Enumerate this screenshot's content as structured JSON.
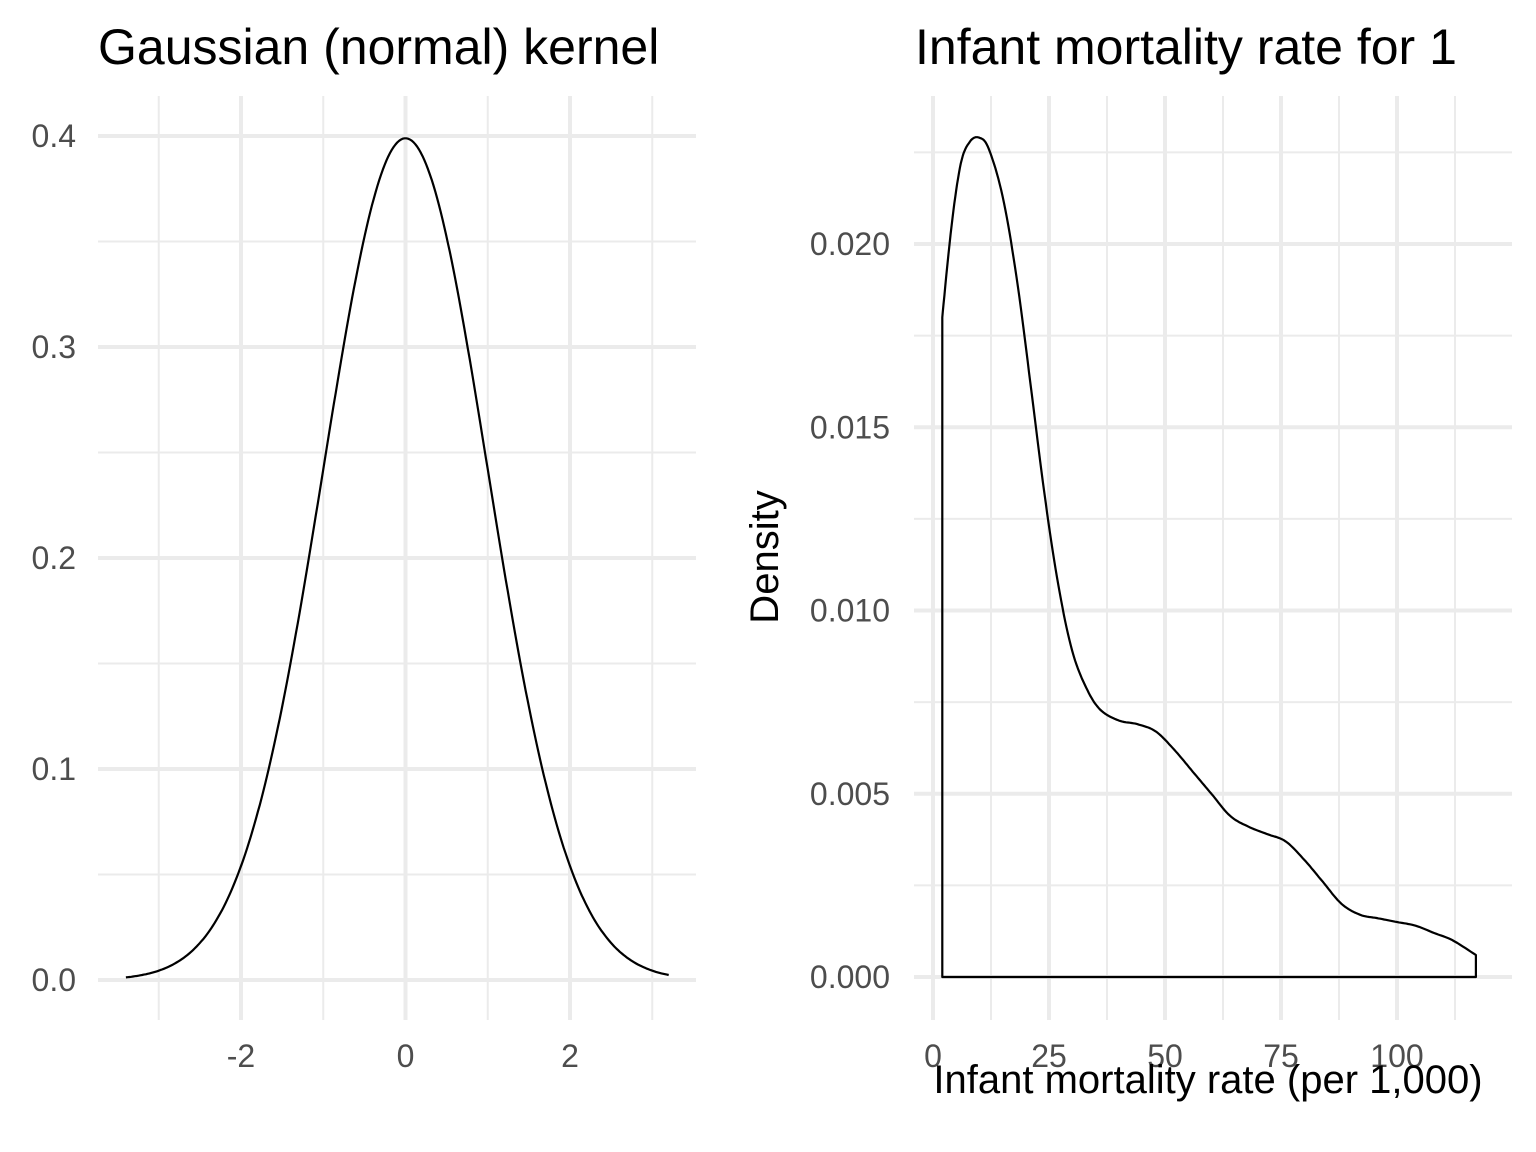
{
  "chart_data": [
    {
      "type": "line",
      "title": "Gaussian (normal) kernel",
      "xlabel": "",
      "ylabel": "",
      "xlim": [
        -3.0,
        3.2
      ],
      "ylim": [
        0,
        0.4
      ],
      "x_ticks": [
        -2,
        0,
        2
      ],
      "x_tick_labels": [
        "-2",
        "0",
        "2"
      ],
      "y_ticks": [
        0.0,
        0.1,
        0.2,
        0.3,
        0.4
      ],
      "y_tick_labels": [
        "0.0",
        "0.1",
        "0.2",
        "0.3",
        "0.4"
      ],
      "grid": true,
      "series": [
        {
          "function": "standard normal density",
          "x_range": [
            -3.4,
            3.2
          ],
          "x": [
            -3.4,
            -3.0,
            -2.5,
            -2.0,
            -1.5,
            -1.0,
            -0.5,
            0.0,
            0.5,
            1.0,
            1.5,
            2.0,
            2.5,
            3.0,
            3.2
          ],
          "y": [
            0.0012,
            0.0044,
            0.0175,
            0.054,
            0.1295,
            0.242,
            0.3521,
            0.3989,
            0.3521,
            0.242,
            0.1295,
            0.054,
            0.0175,
            0.0044,
            0.0024
          ]
        }
      ]
    },
    {
      "type": "area",
      "title": "Infant mortality rate for 1",
      "xlabel": "Infant mortality rate (per 1,000)",
      "ylabel": "Density",
      "xlim": [
        0,
        120
      ],
      "ylim": [
        0,
        0.023
      ],
      "x_ticks": [
        0,
        25,
        50,
        75,
        100
      ],
      "x_tick_labels": [
        "0",
        "25",
        "50",
        "75",
        "100"
      ],
      "y_ticks": [
        0.0,
        0.005,
        0.01,
        0.015,
        0.02
      ],
      "y_tick_labels": [
        "0.000",
        "0.005",
        "0.010",
        "0.015",
        "0.020"
      ],
      "grid": true,
      "series": [
        {
          "x": [
            2,
            4,
            6,
            8,
            10,
            12,
            15,
            18,
            21,
            24,
            27,
            30,
            33,
            36,
            40,
            44,
            48,
            52,
            56,
            60,
            64,
            68,
            72,
            76,
            80,
            84,
            88,
            92,
            96,
            100,
            104,
            108,
            112,
            117
          ],
          "y": [
            0.018,
            0.0205,
            0.0222,
            0.0228,
            0.0229,
            0.0226,
            0.0213,
            0.0191,
            0.0162,
            0.0132,
            0.0107,
            0.0089,
            0.0079,
            0.0073,
            0.007,
            0.0069,
            0.0067,
            0.0062,
            0.0056,
            0.005,
            0.0044,
            0.0041,
            0.0039,
            0.0037,
            0.0032,
            0.0026,
            0.002,
            0.0017,
            0.0016,
            0.0015,
            0.0014,
            0.0012,
            0.001,
            0.0006
          ]
        }
      ]
    }
  ]
}
